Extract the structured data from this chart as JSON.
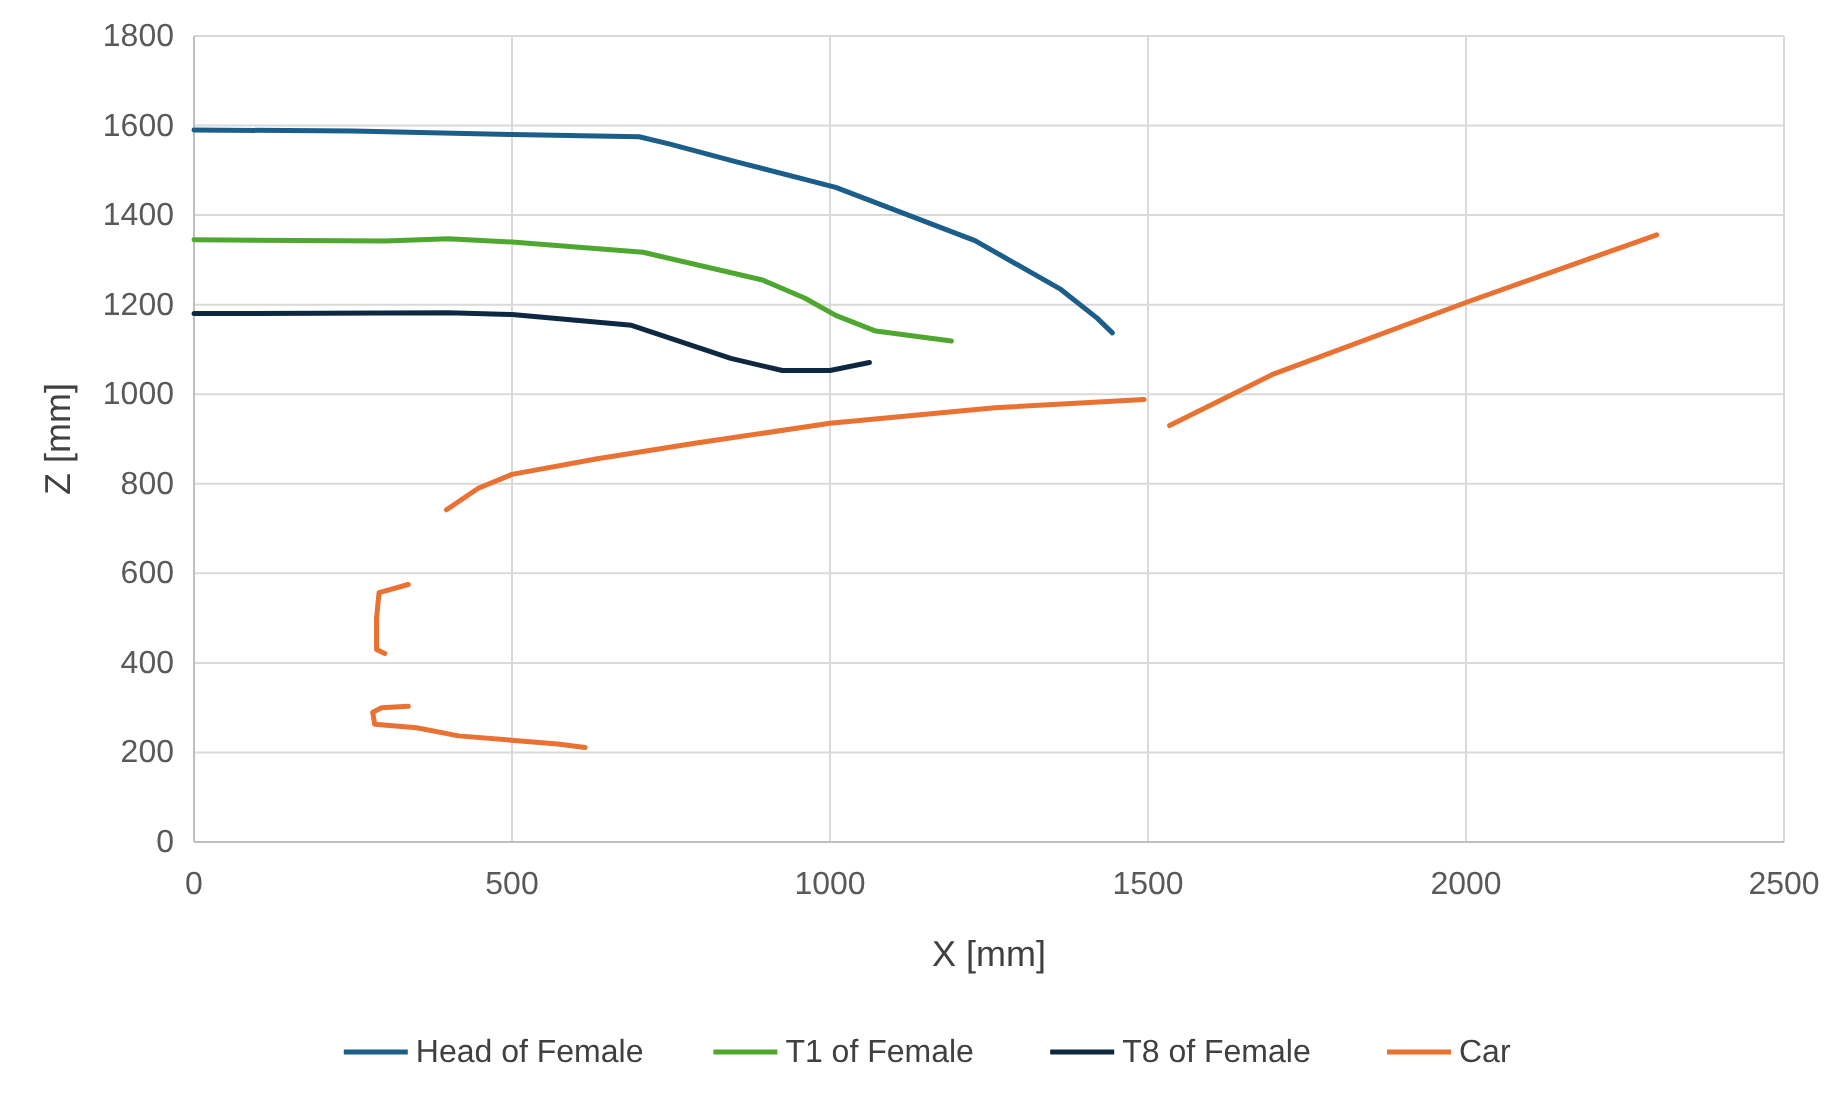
{
  "chart_data": {
    "type": "line",
    "xlabel": "X [mm]",
    "ylabel": "Z [mm]",
    "xlim": [
      0,
      2500
    ],
    "ylim": [
      0,
      1800
    ],
    "xticks": [
      0,
      500,
      1000,
      1500,
      2000,
      2500
    ],
    "yticks": [
      0,
      200,
      400,
      600,
      800,
      1000,
      1200,
      1400,
      1600,
      1800
    ],
    "grid": true,
    "legend": "bottom",
    "marker": "none",
    "line_style": "solid",
    "series": [
      {
        "name": "Head of Female",
        "color": "#1b5e8a",
        "x": [
          0,
          250,
          500,
          700,
          750,
          850,
          1009,
          1228,
          1363,
          1420,
          1444
        ],
        "values": [
          1590,
          1588,
          1580,
          1575,
          1558,
          1520,
          1462,
          1343,
          1234,
          1170,
          1137
        ]
      },
      {
        "name": "T1 of Female",
        "color": "#4ea72e",
        "x": [
          0,
          300,
          400,
          500,
          706,
          894,
          960,
          1009,
          1072,
          1191
        ],
        "values": [
          1345,
          1342,
          1347,
          1340,
          1317,
          1255,
          1215,
          1176,
          1141,
          1119
        ]
      },
      {
        "name": "T8 of Female",
        "color": "#0e2841",
        "x": [
          0,
          400,
          500,
          688,
          844,
          925,
          1000,
          1062
        ],
        "values": [
          1180,
          1182,
          1178,
          1154,
          1080,
          1053,
          1053,
          1071
        ]
      },
      {
        "name": "Car",
        "color": "#e97132",
        "x": [
          337,
          295,
          281,
          284,
          350,
          416,
          572,
          615,
          null,
          337,
          291,
          287,
          287,
          300,
          null,
          397,
          447,
          500,
          634,
          790,
          1000,
          1259,
          1494,
          null,
          1534,
          1697,
          2002,
          2300
        ],
        "values": [
          303,
          300,
          290,
          263,
          255,
          237,
          219,
          211,
          null,
          575,
          557,
          500,
          430,
          421,
          null,
          742,
          790,
          821,
          856,
          891,
          935,
          970,
          988,
          null,
          930,
          1045,
          1206,
          1356
        ]
      }
    ]
  }
}
